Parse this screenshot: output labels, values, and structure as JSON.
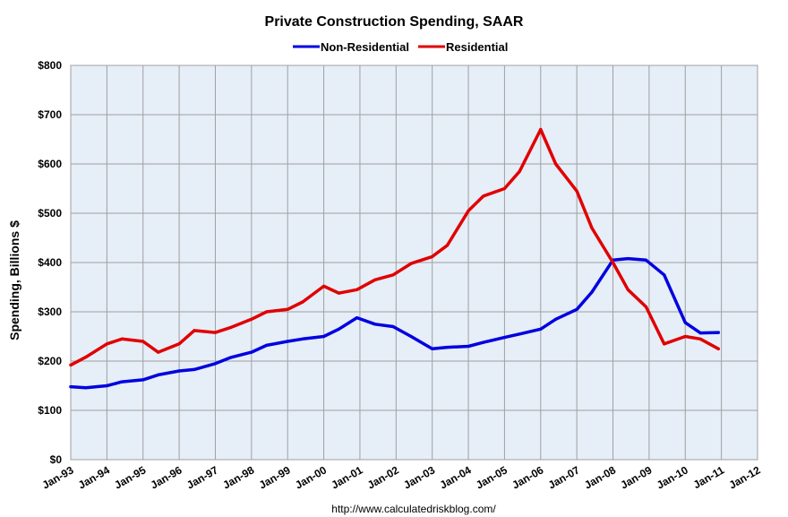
{
  "chart_data": {
    "type": "line",
    "title": "Private Construction Spending, SAAR",
    "ylabel": "Spending, Billions $",
    "xlabel": "",
    "source": "http://www.calculatedriskblog.com/",
    "x_ticks": [
      "Jan-93",
      "Jan-94",
      "Jan-95",
      "Jan-96",
      "Jan-97",
      "Jan-98",
      "Jan-99",
      "Jan-00",
      "Jan-01",
      "Jan-02",
      "Jan-03",
      "Jan-04",
      "Jan-05",
      "Jan-06",
      "Jan-07",
      "Jan-08",
      "Jan-09",
      "Jan-10",
      "Jan-11",
      "Jan-12"
    ],
    "xlim": [
      1993,
      2012
    ],
    "y_ticks": [
      "$0",
      "$100",
      "$200",
      "$300",
      "$400",
      "$500",
      "$600",
      "$700",
      "$800"
    ],
    "y_tick_values": [
      0,
      100,
      200,
      300,
      400,
      500,
      600,
      700,
      800
    ],
    "ylim": [
      0,
      800
    ],
    "grid": true,
    "legend_position": "top-center",
    "colors": {
      "plot_background": "#e6eef8",
      "grid": "#a0a0a0",
      "Non-Residential": "#0000e0",
      "Residential": "#e00000"
    },
    "series": [
      {
        "name": "Non-Residential",
        "x": [
          "1993-01",
          "1993-06",
          "1994-01",
          "1994-06",
          "1995-01",
          "1995-06",
          "1996-01",
          "1996-06",
          "1997-01",
          "1997-06",
          "1998-01",
          "1998-06",
          "1999-01",
          "1999-06",
          "2000-01",
          "2000-06",
          "2000-12",
          "2001-06",
          "2001-12",
          "2002-06",
          "2003-01",
          "2003-06",
          "2004-01",
          "2004-06",
          "2005-01",
          "2005-06",
          "2006-01",
          "2006-06",
          "2007-01",
          "2007-06",
          "2008-01",
          "2008-06",
          "2008-12",
          "2009-06",
          "2010-01",
          "2010-06",
          "2010-12"
        ],
        "values": [
          148,
          146,
          150,
          158,
          162,
          172,
          180,
          183,
          195,
          207,
          218,
          232,
          240,
          245,
          250,
          265,
          288,
          275,
          270,
          250,
          225,
          228,
          230,
          238,
          248,
          255,
          265,
          285,
          305,
          340,
          405,
          408,
          405,
          375,
          278,
          257,
          258
        ]
      },
      {
        "name": "Residential",
        "x": [
          "1993-01",
          "1993-06",
          "1994-01",
          "1994-06",
          "1995-01",
          "1995-06",
          "1996-01",
          "1996-06",
          "1997-01",
          "1997-06",
          "1998-01",
          "1998-06",
          "1999-01",
          "1999-06",
          "2000-01",
          "2000-06",
          "2000-12",
          "2001-06",
          "2001-12",
          "2002-06",
          "2003-01",
          "2003-06",
          "2004-01",
          "2004-06",
          "2005-01",
          "2005-06",
          "2006-01",
          "2006-06",
          "2007-01",
          "2007-06",
          "2008-01",
          "2008-06",
          "2008-12",
          "2009-06",
          "2010-01",
          "2010-06",
          "2010-12"
        ],
        "values": [
          192,
          208,
          235,
          245,
          240,
          218,
          235,
          262,
          258,
          268,
          285,
          300,
          305,
          320,
          352,
          338,
          345,
          365,
          375,
          398,
          412,
          435,
          505,
          535,
          550,
          585,
          670,
          600,
          545,
          470,
          400,
          345,
          310,
          235,
          250,
          245,
          225
        ]
      }
    ]
  }
}
